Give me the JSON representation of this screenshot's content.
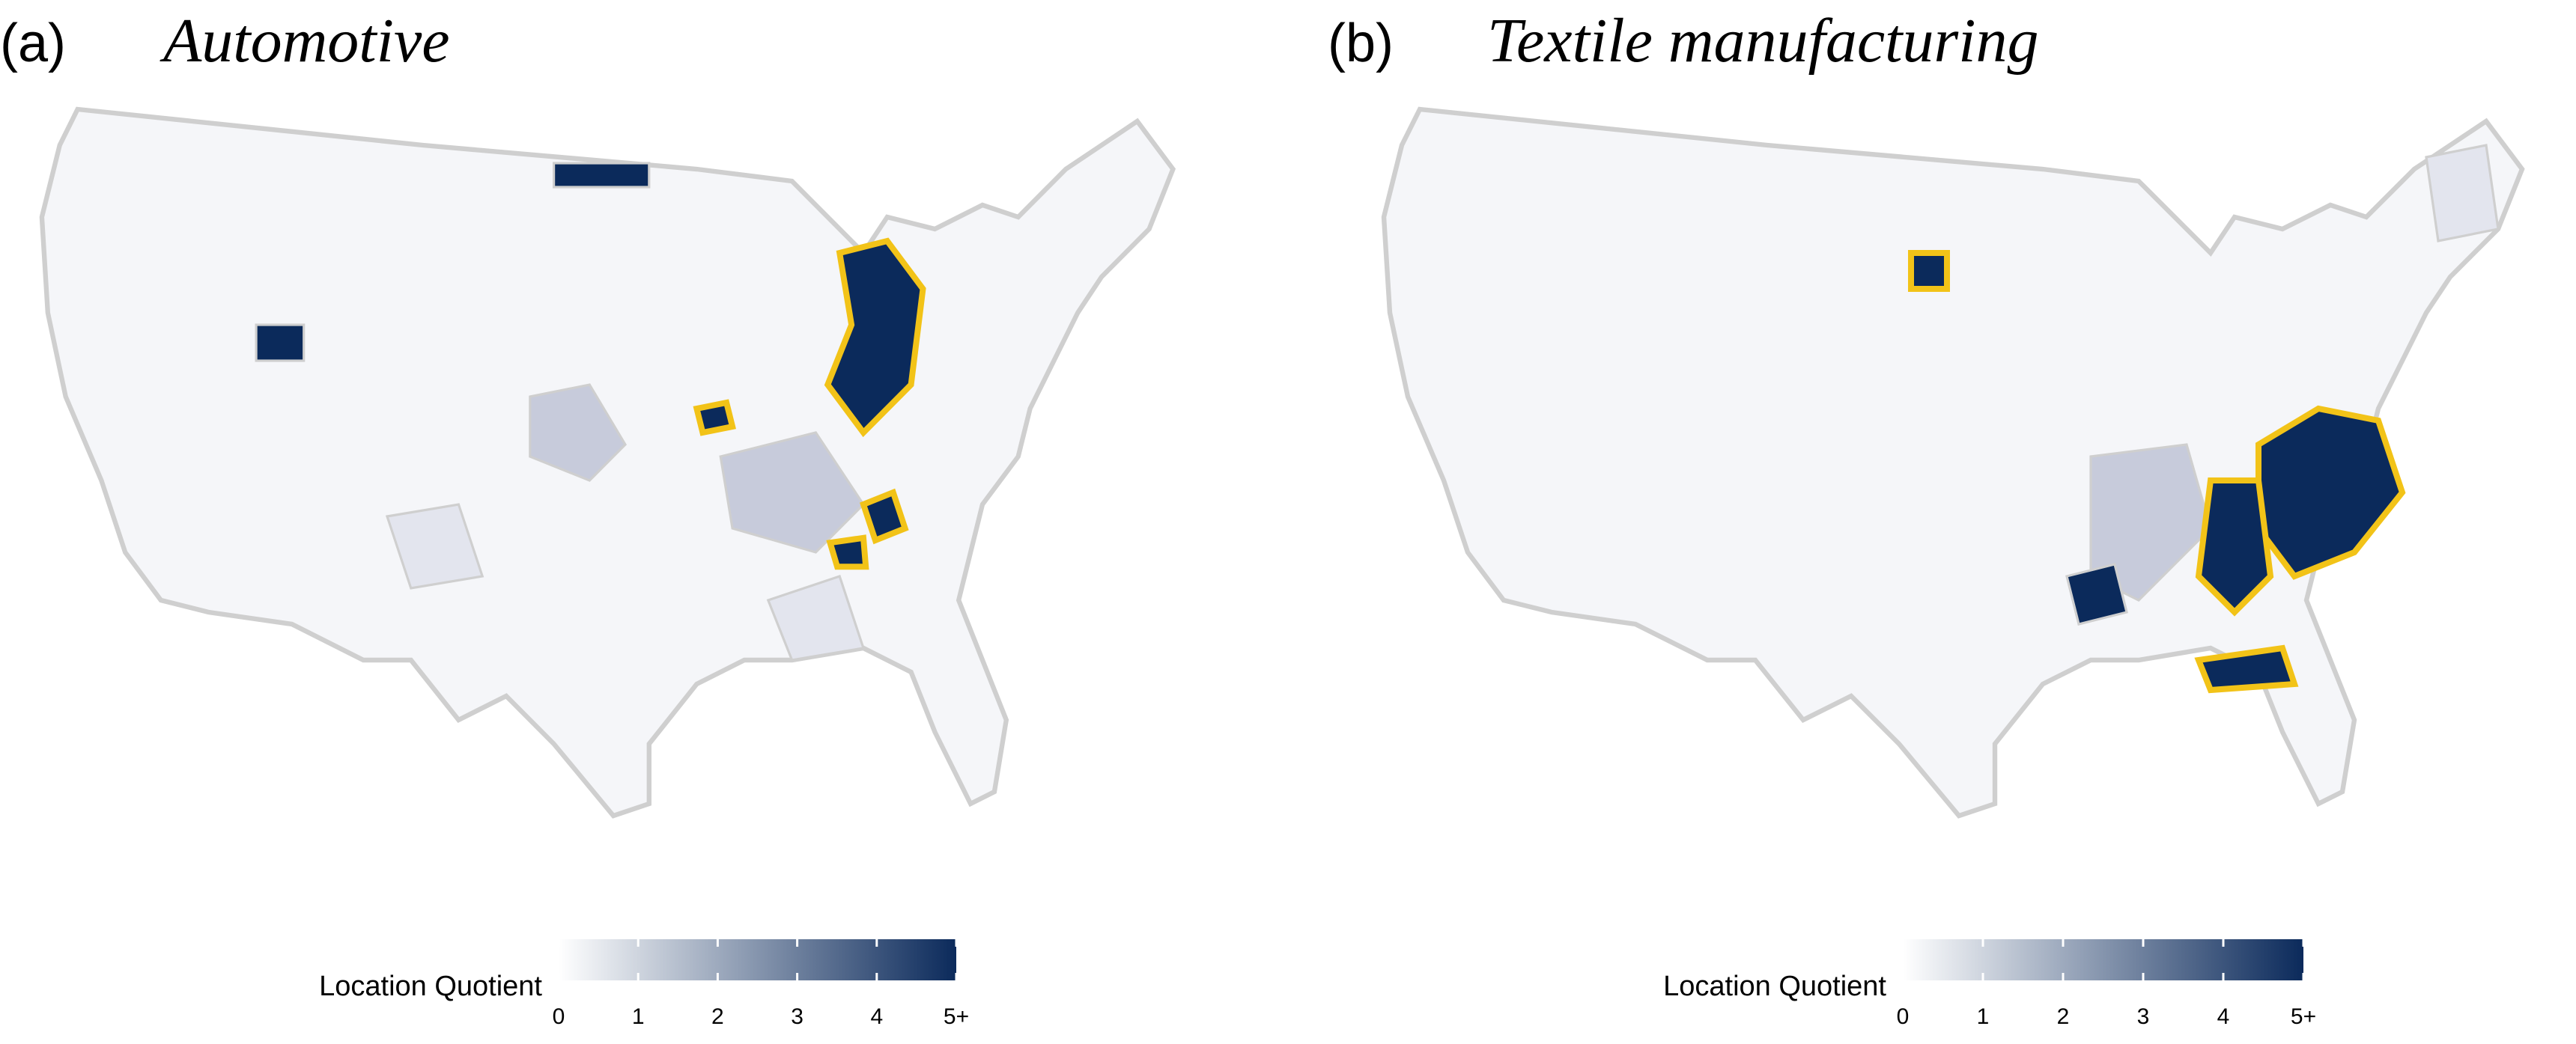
{
  "panels": [
    {
      "label": "(a)",
      "title": "Automotive",
      "legend": {
        "title": "Location Quotient",
        "lim": [
          0,
          5
        ],
        "ticks": [
          0,
          1,
          2,
          3,
          4,
          {
            "value": 5,
            "label": "5+"
          }
        ],
        "colors": [
          "#ffffff",
          "#0b2a5b"
        ]
      }
    },
    {
      "label": "(b)",
      "title": "Textile manufacturing",
      "legend": {
        "title": "Location Quotient",
        "lim": [
          0,
          5
        ],
        "ticks": [
          0,
          1,
          2,
          3,
          4,
          {
            "value": 5,
            "label": "5+"
          }
        ],
        "colors": [
          "#ffffff",
          "#0b2a5b"
        ]
      }
    }
  ]
}
